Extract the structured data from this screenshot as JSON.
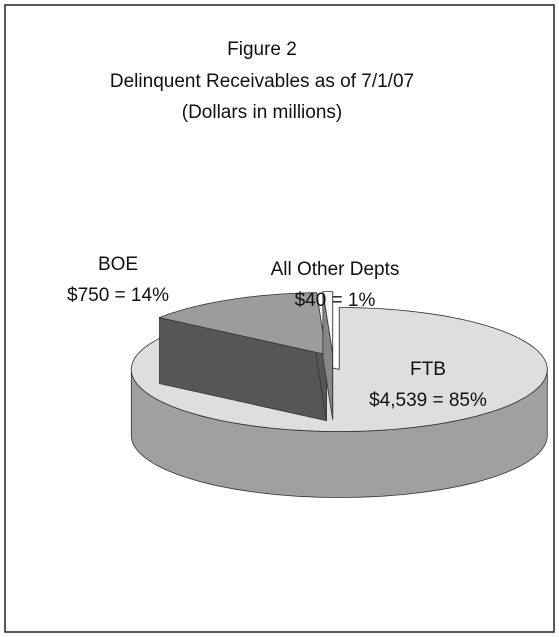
{
  "chart_data": {
    "type": "pie",
    "title": "Figure 2",
    "subtitle": [
      "Delinquent Receivables as of 7/1/07",
      "(Dollars in millions)"
    ],
    "categories": [
      "FTB",
      "BOE",
      "All Other Depts"
    ],
    "values": [
      4539,
      750,
      40
    ],
    "value_labels": [
      "$4,539 = 85%",
      "$750 = 14%",
      "$40 = 1%"
    ],
    "colors": [
      "#dedede",
      "#9c9c9c",
      "#f6f6f6"
    ]
  }
}
